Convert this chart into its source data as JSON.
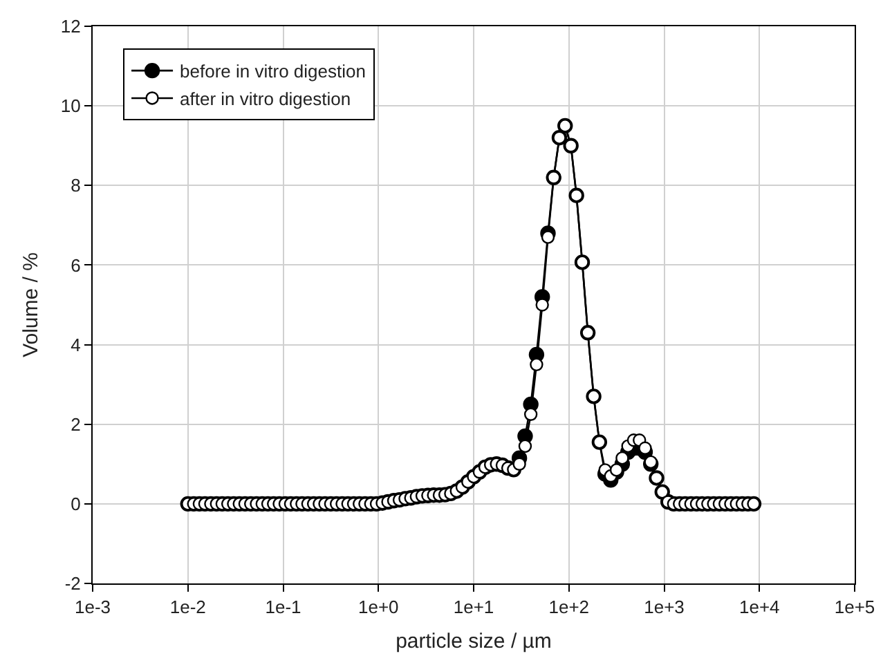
{
  "chart_data": {
    "type": "line",
    "xlabel": "particle size / µm",
    "ylabel": "Volume / %",
    "log": "x",
    "grid": true,
    "legend": "top left",
    "marker": "circle",
    "line_style": "solid",
    "xlim": [
      0.001,
      100000
    ],
    "xticks": [
      {
        "value": 0.001,
        "label": "1e-3"
      },
      {
        "value": 0.01,
        "label": "1e-2"
      },
      {
        "value": 0.1,
        "label": "1e-1"
      },
      {
        "value": 1,
        "label": "1e+0"
      },
      {
        "value": 10,
        "label": "1e+1"
      },
      {
        "value": 100,
        "label": "1e+2"
      },
      {
        "value": 1000,
        "label": "1e+3"
      },
      {
        "value": 10000,
        "label": "1e+4"
      },
      {
        "value": 100000,
        "label": "1e+5"
      }
    ],
    "ylim": [
      -2,
      12
    ],
    "yticks": [
      -2,
      0,
      2,
      4,
      6,
      8,
      10,
      12
    ],
    "x": [
      0.01,
      0.0115,
      0.0132,
      0.0151,
      0.0174,
      0.02,
      0.0229,
      0.0263,
      0.0302,
      0.0347,
      0.0398,
      0.0457,
      0.0525,
      0.0603,
      0.0692,
      0.0794,
      0.0912,
      0.105,
      0.12,
      0.138,
      0.158,
      0.182,
      0.209,
      0.24,
      0.275,
      0.316,
      0.363,
      0.417,
      0.479,
      0.55,
      0.631,
      0.724,
      0.832,
      0.955,
      1.1,
      1.26,
      1.45,
      1.66,
      1.91,
      2.19,
      2.51,
      2.88,
      3.31,
      3.8,
      4.37,
      5.01,
      5.75,
      6.61,
      7.59,
      8.71,
      10,
      11.5,
      13.2,
      15.1,
      17.4,
      20,
      22.9,
      26.3,
      30.2,
      34.7,
      39.8,
      45.7,
      52.5,
      60.3,
      69.2,
      79.4,
      91.2,
      105,
      120,
      138,
      158,
      182,
      209,
      240,
      275,
      316,
      363,
      417,
      479,
      550,
      631,
      724,
      832,
      955,
      1100,
      1260,
      1450,
      1660,
      1910,
      2190,
      2510,
      2880,
      3310,
      3800,
      4370,
      5010,
      5750,
      6610,
      7590,
      8710
    ],
    "series": [
      {
        "name": "before in vitro digestion",
        "color": "#000000",
        "values": [
          0,
          0,
          0,
          0,
          0,
          0,
          0,
          0,
          0,
          0,
          0,
          0,
          0,
          0,
          0,
          0,
          0,
          0,
          0,
          0,
          0,
          0,
          0,
          0,
          0,
          0,
          0,
          0,
          0,
          0,
          0,
          0,
          0,
          0,
          0.02,
          0.05,
          0.08,
          0.1,
          0.13,
          0.15,
          0.18,
          0.2,
          0.21,
          0.22,
          0.22,
          0.23,
          0.26,
          0.32,
          0.42,
          0.55,
          0.68,
          0.8,
          0.92,
          0.98,
          1.0,
          0.97,
          0.9,
          0.86,
          1.15,
          1.7,
          2.5,
          3.75,
          5.2,
          6.8,
          8.2,
          9.2,
          9.5,
          9.0,
          7.75,
          6.07,
          4.3,
          2.7,
          1.55,
          0.75,
          0.6,
          0.8,
          1.0,
          1.3,
          1.4,
          1.4,
          1.3,
          1.0,
          0.65,
          0.3,
          0.05,
          0,
          0,
          0,
          0,
          0,
          0,
          0,
          0,
          0,
          0,
          0,
          0,
          0,
          0,
          0
        ]
      },
      {
        "name": "after in vitro digestion",
        "color": "#000000",
        "values": [
          0,
          0,
          0,
          0,
          0,
          0,
          0,
          0,
          0,
          0,
          0,
          0,
          0,
          0,
          0,
          0,
          0,
          0,
          0,
          0,
          0,
          0,
          0,
          0,
          0,
          0,
          0,
          0,
          0,
          0,
          0,
          0,
          0,
          0,
          0.02,
          0.05,
          0.08,
          0.1,
          0.13,
          0.15,
          0.18,
          0.2,
          0.21,
          0.22,
          0.22,
          0.23,
          0.26,
          0.32,
          0.42,
          0.55,
          0.68,
          0.8,
          0.92,
          0.98,
          1.0,
          0.97,
          0.9,
          0.86,
          1.0,
          1.45,
          2.25,
          3.5,
          5.0,
          6.7,
          8.2,
          9.2,
          9.5,
          9.0,
          7.75,
          6.07,
          4.3,
          2.7,
          1.55,
          0.85,
          0.7,
          0.85,
          1.15,
          1.45,
          1.6,
          1.6,
          1.4,
          1.05,
          0.65,
          0.3,
          0.05,
          0,
          0,
          0,
          0,
          0,
          0,
          0,
          0,
          0,
          0,
          0,
          0,
          0,
          0,
          0
        ]
      }
    ]
  }
}
